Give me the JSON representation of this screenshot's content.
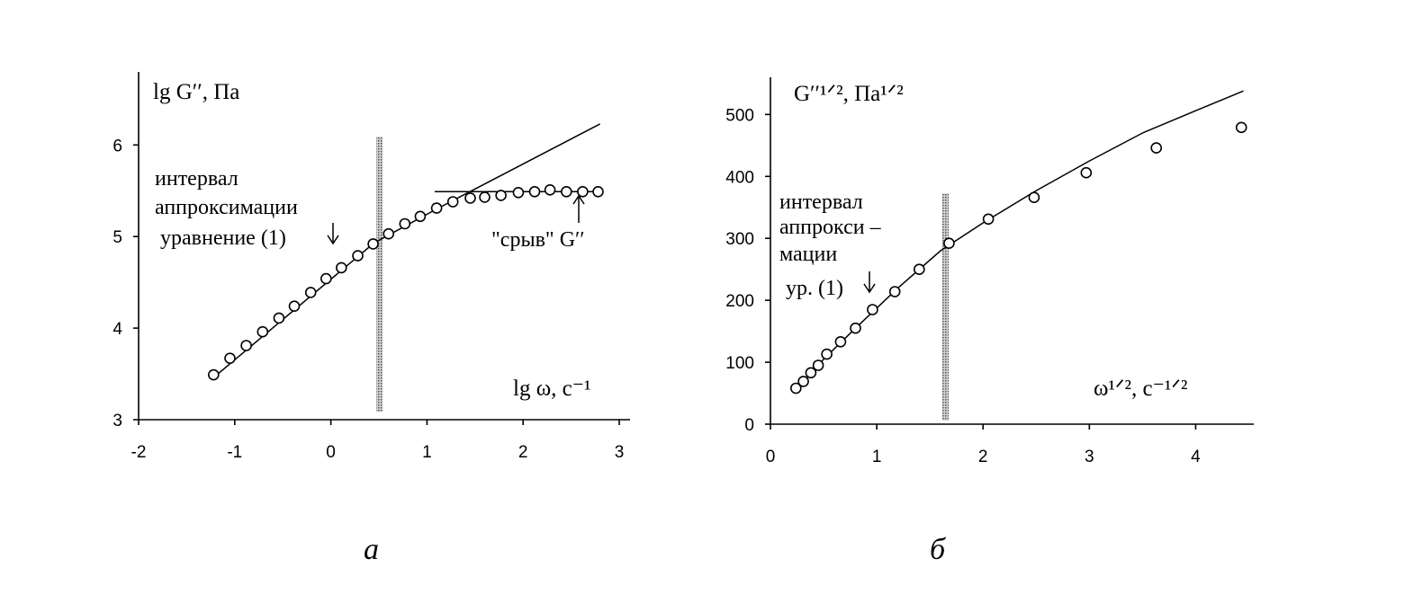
{
  "figure": {
    "panel_labels": [
      "а",
      "б"
    ]
  },
  "chart_data": [
    {
      "type": "scatter",
      "panel": "а",
      "xlim": [
        -2,
        3
      ],
      "ylim": [
        3,
        6.7
      ],
      "xticks": [
        "-2",
        "-1",
        "0",
        "1",
        "2",
        "3"
      ],
      "yticks": [
        "3",
        "4",
        "5",
        "6"
      ],
      "ylabel": "lg G′′, Па",
      "xlabel": "lg ω, с⁻¹",
      "grid": false,
      "series": [
        {
          "points": [
            [
              -1.22,
              3.49
            ],
            [
              -1.05,
              3.67
            ],
            [
              -0.88,
              3.81
            ],
            [
              -0.71,
              3.96
            ],
            [
              -0.54,
              4.11
            ],
            [
              -0.38,
              4.24
            ],
            [
              -0.21,
              4.39
            ],
            [
              -0.05,
              4.54
            ],
            [
              0.11,
              4.66
            ],
            [
              0.28,
              4.79
            ],
            [
              0.44,
              4.92
            ],
            [
              0.6,
              5.03
            ],
            [
              0.77,
              5.14
            ],
            [
              0.93,
              5.22
            ],
            [
              1.1,
              5.31
            ],
            [
              1.27,
              5.38
            ],
            [
              1.45,
              5.42
            ],
            [
              1.6,
              5.43
            ],
            [
              1.77,
              5.45
            ],
            [
              1.95,
              5.48
            ],
            [
              2.12,
              5.49
            ],
            [
              2.28,
              5.51
            ],
            [
              2.45,
              5.49
            ],
            [
              2.62,
              5.49
            ],
            [
              2.78,
              5.49
            ]
          ]
        }
      ],
      "fit_line": [
        [
          -1.22,
          3.46
        ],
        [
          0.45,
          4.93
        ],
        [
          1.1,
          5.3
        ],
        [
          2.8,
          6.23
        ]
      ],
      "plateau_line": [
        [
          1.08,
          5.49
        ],
        [
          2.78,
          5.49
        ]
      ],
      "interval_marker_x": 0.5,
      "annotations": {
        "interval": [
          "интервал",
          "аппроксимации",
          "уравнение (1)"
        ],
        "srvv": "\"срыв\" G′′"
      }
    },
    {
      "type": "scatter",
      "panel": "б",
      "xlim": [
        0,
        4.8
      ],
      "ylim": [
        0,
        560
      ],
      "xticks": [
        "0",
        "1",
        "2",
        "3",
        "4"
      ],
      "yticks": [
        "0",
        "100",
        "200",
        "300",
        "400",
        "500"
      ],
      "ylabel": "G′′¹ᐟ², Па¹ᐟ²",
      "xlabel": "ω¹ᐟ², с⁻¹ᐟ²",
      "grid": false,
      "series": [
        {
          "points": [
            [
              0.24,
              58
            ],
            [
              0.31,
              69
            ],
            [
              0.38,
              83
            ],
            [
              0.45,
              95
            ],
            [
              0.53,
              113
            ],
            [
              0.66,
              133
            ],
            [
              0.8,
              155
            ],
            [
              0.96,
              185
            ],
            [
              1.17,
              214
            ],
            [
              1.4,
              250
            ],
            [
              1.68,
              292
            ],
            [
              2.05,
              331
            ],
            [
              2.48,
              366
            ],
            [
              2.97,
              406
            ],
            [
              3.63,
              446
            ],
            [
              4.43,
              479
            ]
          ]
        }
      ],
      "fit_line": [
        [
          0.24,
          55
        ],
        [
          0.5,
          105
        ],
        [
          0.8,
          155
        ],
        [
          1.2,
          220
        ],
        [
          1.6,
          280
        ],
        [
          2.0,
          325
        ],
        [
          2.5,
          377
        ],
        [
          3.0,
          425
        ],
        [
          3.5,
          470
        ],
        [
          4.0,
          506
        ],
        [
          4.45,
          538
        ]
      ],
      "interval_marker_x": 1.7,
      "annotations": {
        "interval": [
          "интервал",
          "аппрокси –",
          "мации",
          "ур. (1)"
        ]
      }
    }
  ]
}
